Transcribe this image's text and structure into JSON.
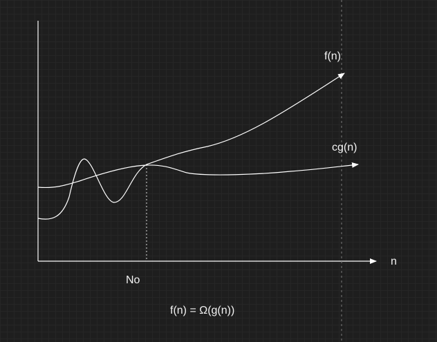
{
  "diagram": {
    "curve_f_label": "f(n)",
    "curve_cg_label": "cg(n)",
    "x_axis_label": "n",
    "threshold_label": "No",
    "formula": "f(n) = Ω(g(n))"
  },
  "colors": {
    "background": "#1e1e1e",
    "stroke": "#ffffff",
    "text": "#f2f2f2"
  }
}
